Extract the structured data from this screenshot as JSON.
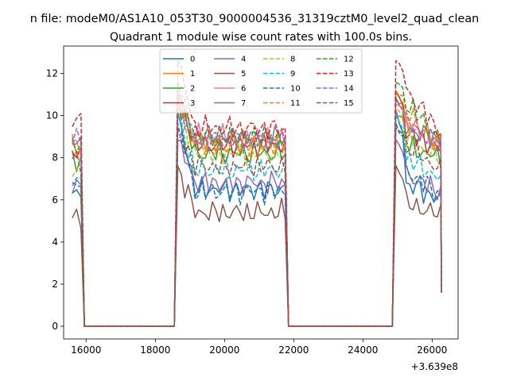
{
  "chart_data": {
    "type": "line",
    "suptitle": "n file: modeM0/AS1A10_053T30_9000004536_31319cztM0_level2_quad_clean",
    "title": "Quadrant 1 module wise count rates with 100.0s bins.",
    "xlabel": "",
    "ylabel": "",
    "offset_label": "+3.639e8",
    "xlim": [
      15350,
      26750
    ],
    "ylim": [
      -0.6,
      13.3
    ],
    "xticks": [
      16000,
      18000,
      20000,
      22000,
      24000,
      26000
    ],
    "yticks": [
      0,
      2,
      4,
      6,
      8,
      10,
      12
    ],
    "grid": false,
    "legend": {
      "placement": "upper-center",
      "ncol": 4
    },
    "segments": [
      {
        "start": 15600,
        "end": 15850,
        "n": 3
      },
      {
        "start": 18650,
        "end": 21750,
        "n": 32
      },
      {
        "start": 24950,
        "end": 26250,
        "n": 14
      }
    ],
    "zero_intervals": [
      [
        15950,
        18550
      ],
      [
        21850,
        24850
      ]
    ],
    "series": [
      {
        "name": "0",
        "color": "#1f77b4",
        "dash": false,
        "peak": 10.2,
        "level": [
          6.2,
          6.5,
          6.0
        ],
        "tail": 6.8
      },
      {
        "name": "1",
        "color": "#ff7f0e",
        "dash": false,
        "peak": 10.8,
        "level": [
          8.4,
          8.8,
          8.6
        ],
        "tail": 9.8
      },
      {
        "name": "2",
        "color": "#2ca02c",
        "dash": false,
        "peak": 10.9,
        "level": [
          8.0,
          8.2,
          8.0
        ],
        "tail": 8.5
      },
      {
        "name": "3",
        "color": "#d62728",
        "dash": false,
        "peak": 11.1,
        "level": [
          8.2,
          8.6,
          8.4
        ],
        "tail": 9.2
      },
      {
        "name": "4",
        "color": "#9467bd",
        "dash": false,
        "peak": 8.8,
        "level": [
          6.6,
          6.8,
          6.4
        ],
        "tail": 7.2
      },
      {
        "name": "5",
        "color": "#8c564b",
        "dash": false,
        "peak": 7.6,
        "level": [
          5.2,
          5.4,
          5.3
        ],
        "tail": 5.8
      },
      {
        "name": "6",
        "color": "#e377c2",
        "dash": false,
        "peak": 10.6,
        "level": [
          8.6,
          9.0,
          8.8
        ],
        "tail": 9.6
      },
      {
        "name": "7",
        "color": "#7f7f7f",
        "dash": false,
        "peak": 10.0,
        "level": [
          8.8,
          9.0,
          8.8
        ],
        "tail": 9.4
      },
      {
        "name": "8",
        "color": "#bcbd22",
        "dash": true,
        "peak": 10.4,
        "level": [
          7.6,
          8.2,
          8.0
        ],
        "tail": 8.8
      },
      {
        "name": "9",
        "color": "#17becf",
        "dash": true,
        "peak": 10.0,
        "level": [
          6.8,
          7.4,
          7.0
        ],
        "tail": 8.0
      },
      {
        "name": "10",
        "color": "#1f77b4",
        "dash": true,
        "peak": 9.6,
        "level": [
          6.6,
          6.4,
          6.2
        ],
        "tail": 7.4
      },
      {
        "name": "11",
        "color": "#ff7f0e",
        "dash": true,
        "peak": 11.2,
        "level": [
          8.6,
          8.6,
          8.4
        ],
        "tail": 10.2
      },
      {
        "name": "12",
        "color": "#2ca02c",
        "dash": true,
        "peak": 11.6,
        "level": [
          8.6,
          9.0,
          8.8
        ],
        "tail": 10.6
      },
      {
        "name": "13",
        "color": "#d62728",
        "dash": true,
        "peak": 12.6,
        "level": [
          9.8,
          9.4,
          9.2
        ],
        "tail": 11.2
      },
      {
        "name": "14",
        "color": "#9467bd",
        "dash": true,
        "peak": 10.7,
        "level": [
          9.0,
          8.8,
          8.6
        ],
        "tail": 9.6
      },
      {
        "name": "15",
        "color": "#8c564b",
        "dash": true,
        "peak": 9.4,
        "level": [
          7.8,
          7.6,
          7.4
        ],
        "tail": 8.6
      }
    ]
  }
}
